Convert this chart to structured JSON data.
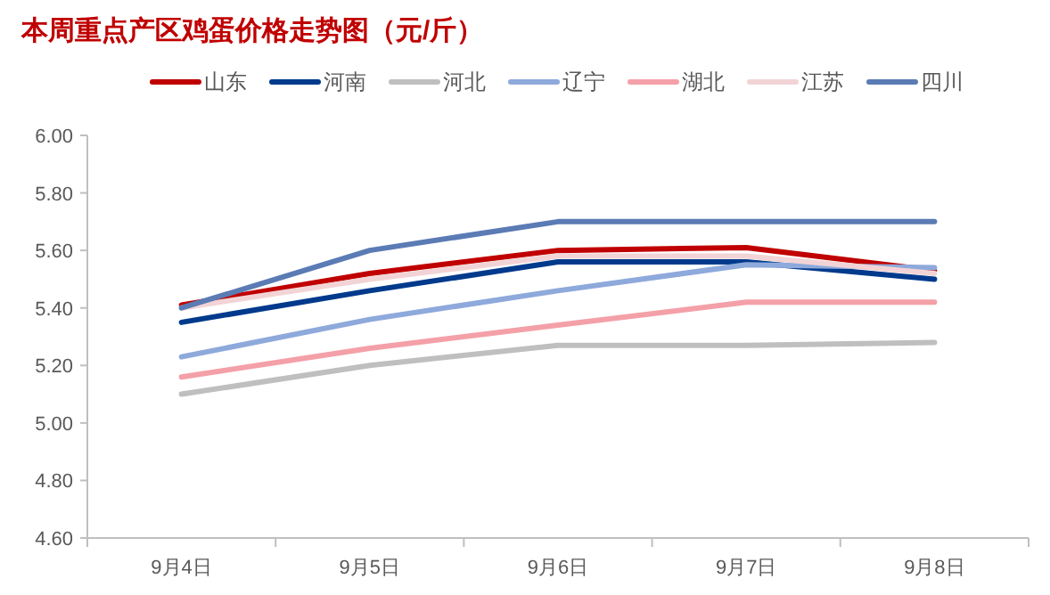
{
  "chart_data": {
    "type": "line",
    "title": "本周重点产区鸡蛋价格走势图（元/斤）",
    "categories": [
      "9月4日",
      "9月5日",
      "9月6日",
      "9月7日",
      "9月8日"
    ],
    "ylim": [
      4.6,
      6.0
    ],
    "yticks": [
      {
        "value": 4.6,
        "label": "4.60"
      },
      {
        "value": 4.8,
        "label": "4.80"
      },
      {
        "value": 5.0,
        "label": "5.00"
      },
      {
        "value": 5.2,
        "label": "5.20"
      },
      {
        "value": 5.4,
        "label": "5.40"
      },
      {
        "value": 5.6,
        "label": "5.60"
      },
      {
        "value": 5.8,
        "label": "5.80"
      },
      {
        "value": 6.0,
        "label": "6.00"
      }
    ],
    "grid": false,
    "legend": "top",
    "marker": "none",
    "line_style": "solid",
    "series": [
      {
        "name": "山东",
        "color": "#c00000",
        "values": [
          5.41,
          5.52,
          5.6,
          5.61,
          5.53
        ]
      },
      {
        "name": "河南",
        "color": "#003a8c",
        "values": [
          5.35,
          5.46,
          5.56,
          5.56,
          5.5
        ]
      },
      {
        "name": "河北",
        "color": "#bfbfbf",
        "values": [
          5.1,
          5.2,
          5.27,
          5.27,
          5.28
        ]
      },
      {
        "name": "辽宁",
        "color": "#8ea9db",
        "values": [
          5.23,
          5.36,
          5.46,
          5.55,
          5.54
        ]
      },
      {
        "name": "湖北",
        "color": "#f4a0a8",
        "values": [
          5.16,
          5.26,
          5.34,
          5.42,
          5.42
        ]
      },
      {
        "name": "江苏",
        "color": "#f2d4d6",
        "values": [
          5.4,
          5.5,
          5.58,
          5.58,
          5.52
        ]
      },
      {
        "name": "四川",
        "color": "#5b7bb4",
        "values": [
          5.4,
          5.6,
          5.7,
          5.7,
          5.7
        ]
      }
    ]
  }
}
